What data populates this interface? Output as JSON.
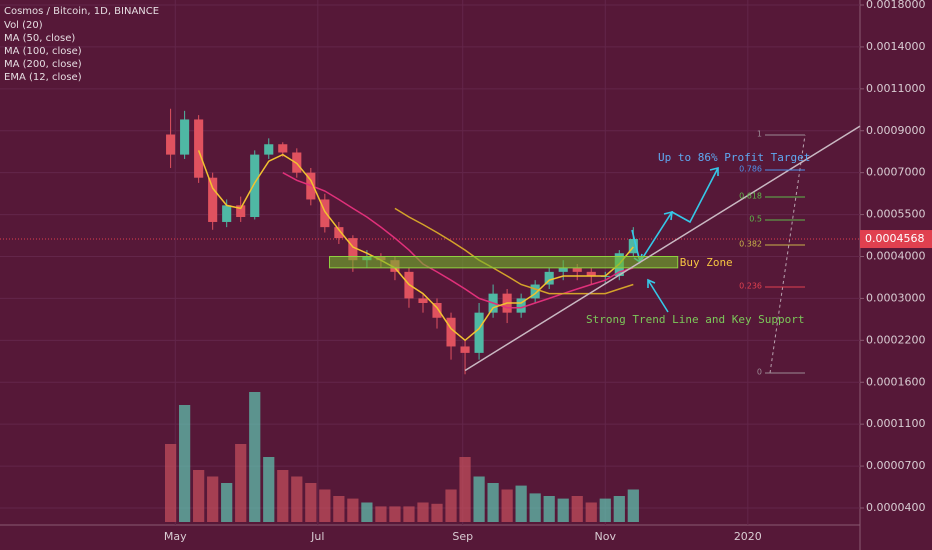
{
  "chart_data": {
    "type": "candlestick",
    "title": "Cosmos / Bitcoin, 1D, BINANCE",
    "x": [
      -2,
      4,
      10,
      16,
      22,
      28,
      34,
      40,
      46,
      52,
      58,
      64,
      70,
      76,
      82,
      88,
      94,
      100,
      106,
      112,
      118,
      124,
      130,
      136,
      142,
      148,
      154,
      160,
      166,
      172,
      178,
      184,
      190,
      196
    ],
    "open": [
      0.00088,
      0.00078,
      0.00095,
      0.00068,
      0.00052,
      0.00058,
      0.00054,
      0.00078,
      0.00083,
      0.00079,
      0.0007,
      0.0006,
      0.0005,
      0.00046,
      0.00039,
      0.0004,
      0.00039,
      0.00036,
      0.0003,
      0.00029,
      0.00026,
      0.00021,
      0.0002,
      0.00027,
      0.00031,
      0.00027,
      0.0003,
      0.00033,
      0.00036,
      0.00037,
      0.00036,
      0.00035,
      0.00035,
      0.00041
    ],
    "high": [
      0.001,
      0.00099,
      0.00097,
      0.0007,
      0.0006,
      0.00061,
      0.0008,
      0.00086,
      0.00084,
      0.00081,
      0.00072,
      0.00062,
      0.00052,
      0.00047,
      0.00042,
      0.00041,
      0.0004,
      0.00037,
      0.00031,
      0.0003,
      0.00027,
      0.00022,
      0.00029,
      0.00033,
      0.00032,
      0.00031,
      0.00034,
      0.00037,
      0.00039,
      0.00038,
      0.00037,
      0.00036,
      0.00042,
      0.0005
    ],
    "low": [
      0.00072,
      0.00076,
      0.00066,
      0.00049,
      0.0005,
      0.00052,
      0.00053,
      0.00076,
      0.00077,
      0.00068,
      0.00058,
      0.00048,
      0.00044,
      0.00036,
      0.00037,
      0.00037,
      0.00034,
      0.00028,
      0.00027,
      0.00024,
      0.00019,
      0.00017,
      0.00019,
      0.00026,
      0.00025,
      0.00026,
      0.00029,
      0.00032,
      0.00034,
      0.00034,
      0.00033,
      0.00033,
      0.00034,
      0.0004
    ],
    "close": [
      0.00078,
      0.00095,
      0.00068,
      0.00052,
      0.00058,
      0.00054,
      0.00078,
      0.00083,
      0.00079,
      0.0007,
      0.0006,
      0.0005,
      0.00046,
      0.00039,
      0.0004,
      0.00039,
      0.00036,
      0.0003,
      0.00029,
      0.00026,
      0.00021,
      0.0002,
      0.00027,
      0.00031,
      0.00027,
      0.0003,
      0.00033,
      0.00036,
      0.00037,
      0.00036,
      0.00035,
      0.00035,
      0.00041,
      0.0004568
    ],
    "up_color": "#4fb8a4",
    "down_color": "#e0525f",
    "volume": {
      "name": "Vol (20)",
      "up_color": "#5fc7b4",
      "down_color": "#c8505e",
      "values": [
        60,
        90,
        40,
        35,
        30,
        60,
        100,
        50,
        40,
        35,
        30,
        25,
        20,
        18,
        15,
        12,
        12,
        12,
        15,
        14,
        25,
        50,
        35,
        30,
        25,
        28,
        22,
        20,
        18,
        20,
        15,
        18,
        20,
        25
      ]
    },
    "series": [
      {
        "name": "MA (50, close)",
        "color": "#e0307a",
        "values": [
          null,
          null,
          null,
          null,
          null,
          null,
          null,
          null,
          0.0007,
          0.00067,
          0.00065,
          0.00063,
          0.0006,
          0.00057,
          0.00054,
          0.0005,
          0.00046,
          0.00042,
          0.00038,
          0.00036,
          0.00034,
          0.00032,
          0.0003,
          0.00029,
          0.00028,
          0.00028,
          0.00029,
          0.0003,
          0.00031,
          0.00032,
          0.00033,
          0.00034,
          0.00036,
          0.00037
        ]
      },
      {
        "name": "MA (100, close)",
        "color": "#d4a32a",
        "values": [
          null,
          null,
          null,
          null,
          null,
          null,
          null,
          null,
          null,
          null,
          null,
          null,
          null,
          null,
          null,
          null,
          0.00057,
          0.00054,
          0.00051,
          0.00048,
          0.00045,
          0.00042,
          0.00039,
          0.00037,
          0.00035,
          0.00033,
          0.00032,
          0.00031,
          0.00031,
          0.00031,
          0.00031,
          0.00031,
          0.00032,
          0.00033
        ]
      },
      {
        "name": "MA (200, close)",
        "color": "#3f8fe0",
        "values": [
          null,
          null,
          null,
          null,
          null,
          null,
          null,
          null,
          null,
          null,
          null,
          null,
          null,
          null,
          null,
          null,
          null,
          null,
          null,
          null,
          null,
          null,
          null,
          null,
          null,
          null,
          null,
          null,
          null,
          null,
          null,
          null,
          null,
          null
        ]
      },
      {
        "name": "EMA (12, close)",
        "color": "#f2c230",
        "values": [
          null,
          null,
          0.0008,
          0.00064,
          0.00058,
          0.00057,
          0.00066,
          0.00075,
          0.00078,
          0.00074,
          0.00067,
          0.00056,
          0.00049,
          0.00043,
          0.00041,
          0.00039,
          0.00037,
          0.00033,
          0.00031,
          0.00028,
          0.00024,
          0.00022,
          0.00024,
          0.00028,
          0.00029,
          0.00029,
          0.00031,
          0.00034,
          0.00035,
          0.00035,
          0.00035,
          0.00035,
          0.00038,
          0.00043
        ]
      }
    ],
    "xlim": [
      -75,
      293
    ],
    "xticks": [
      {
        "value": 0,
        "label": "May"
      },
      {
        "value": 61,
        "label": "Jul"
      },
      {
        "value": 123,
        "label": "Sep"
      },
      {
        "value": 184,
        "label": "Nov"
      },
      {
        "value": 245,
        "label": "2020"
      }
    ],
    "ylim": [
      4e-05,
      0.0018
    ],
    "yticks": [
      {
        "value": 0.0018,
        "label": "0.0018000"
      },
      {
        "value": 0.0014,
        "label": "0.0014000"
      },
      {
        "value": 0.0011,
        "label": "0.0011000"
      },
      {
        "value": 0.0009,
        "label": "0.0009000"
      },
      {
        "value": 0.0007,
        "label": "0.0007000"
      },
      {
        "value": 0.00055,
        "label": "0.0005500"
      },
      {
        "value": 0.0004,
        "label": "0.0004000"
      },
      {
        "value": 0.0003,
        "label": "0.0003000"
      },
      {
        "value": 0.00022,
        "label": "0.0002200"
      },
      {
        "value": 0.00016,
        "label": "0.0001600"
      },
      {
        "value": 0.00011,
        "label": "0.0001100"
      },
      {
        "value": 7e-05,
        "label": "0.0000700"
      },
      {
        "value": 4e-05,
        "label": "0.0000400"
      }
    ],
    "grid": true,
    "last_price": 0.0004568,
    "last_price_color": "#e0404f",
    "buy_zone": {
      "label": "Buy Zone",
      "x": [
        66,
        215
      ],
      "range": [
        0.00037,
        0.0004
      ]
    },
    "trend_line": {
      "label": "Strong Trend Line and Key Support",
      "x": [
        124,
        293
      ],
      "y": [
        0.000175,
        0.00092
      ]
    },
    "profit_target": "Up to 86% Profit Target",
    "fib_levels": [
      1,
      0.786,
      0.618,
      0.5,
      0.382,
      0.236,
      0
    ]
  }
}
